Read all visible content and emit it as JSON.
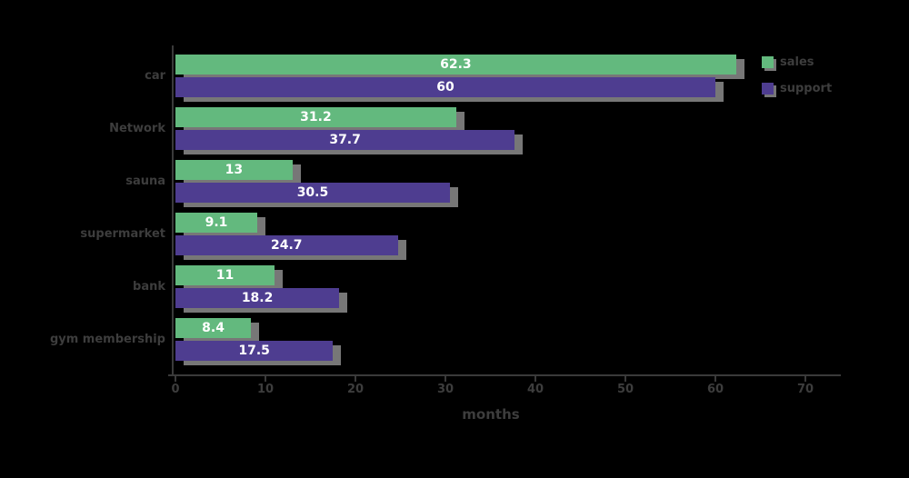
{
  "chart_data": {
    "type": "bar",
    "orientation": "horizontal",
    "title": "",
    "categories": [
      "car",
      "Network",
      "sauna",
      "supermarket",
      "bank",
      "gym membership"
    ],
    "series": [
      {
        "name": "sales",
        "color": "#63b97e",
        "values": [
          62.3,
          31.2,
          13,
          9.1,
          11,
          8.4
        ]
      },
      {
        "name": "support",
        "color": "#4e3d90",
        "values": [
          60,
          37.7,
          30.5,
          24.7,
          18.2,
          17.5
        ]
      }
    ],
    "xlabel": "months",
    "xlim": [
      0,
      70
    ],
    "xticks": [
      "0",
      "10",
      "20",
      "30",
      "40",
      "50",
      "60",
      "70"
    ],
    "legend_position": "top-right",
    "grid": false,
    "background_color": "#000000",
    "axis_color": "#3a3a3a",
    "text_color": "#3d3d3d",
    "bar_value_text_color": "#ffffff",
    "shadow_color": "#888888"
  },
  "layout_note": "grouped horizontal bars, green above purple in each group"
}
